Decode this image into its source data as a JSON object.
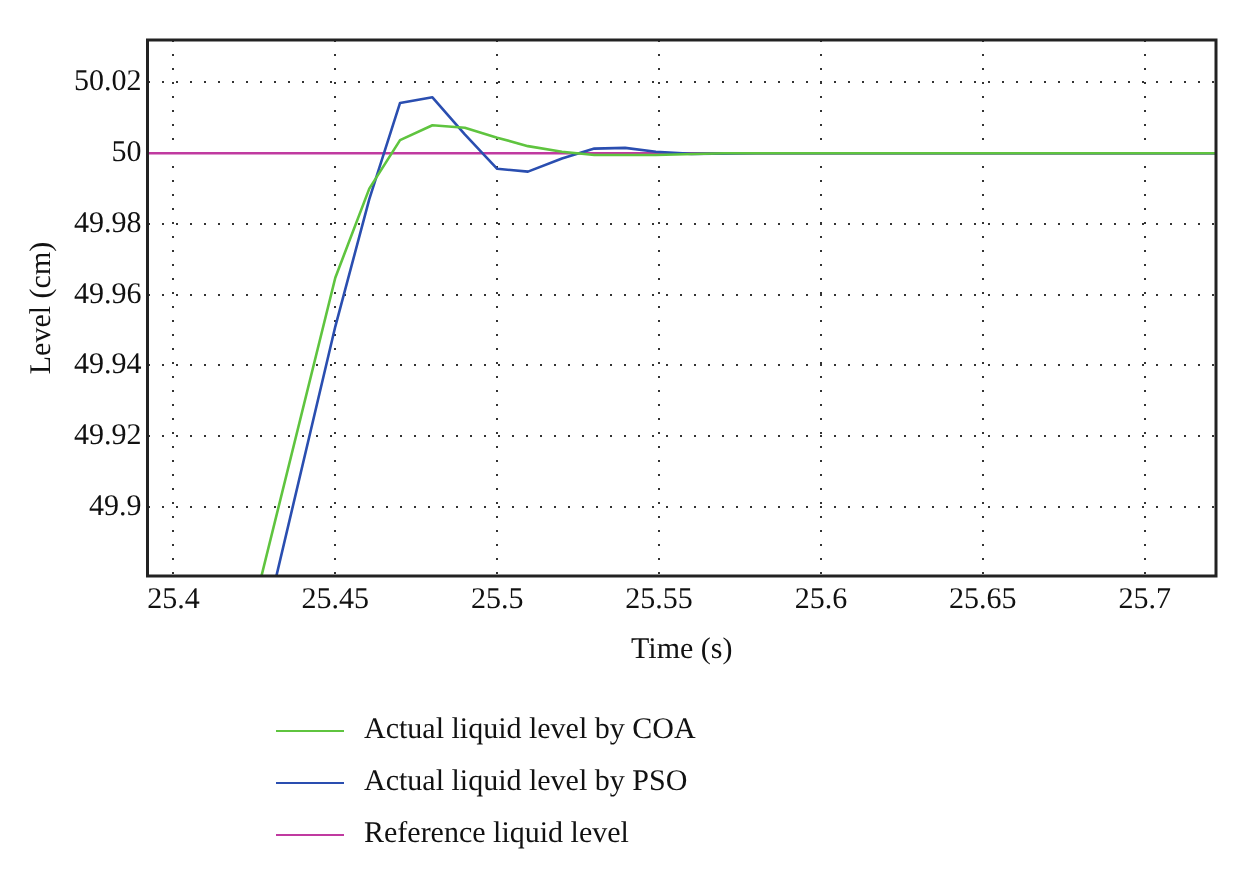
{
  "chart_data": {
    "type": "line",
    "xlabel": "Time (s)",
    "ylabel": "Level (cm)",
    "xlim": [
      25.392,
      25.722
    ],
    "ylim": [
      49.8805,
      50.032
    ],
    "xticks": [
      25.4,
      25.45,
      25.5,
      25.55,
      25.6,
      25.65,
      25.7
    ],
    "yticks": [
      49.9,
      49.92,
      49.94,
      49.96,
      49.98,
      50,
      50.02
    ],
    "grid": true,
    "legend": "bottom",
    "marker": "none",
    "line_style": "solid",
    "series": [
      {
        "name": "Actual liquid level by COA",
        "color": "#5fc43f",
        "x": [
          25.4272,
          25.45,
          25.4605,
          25.47,
          25.48,
          25.49,
          25.5,
          25.5095,
          25.52,
          25.53,
          25.549,
          25.57,
          25.6,
          25.722
        ],
        "values": [
          49.8805,
          49.9648,
          49.99,
          50.0037,
          50.0079,
          50.0072,
          50.0044,
          50.002,
          50.0004,
          49.9995,
          49.9995,
          50,
          50,
          50
        ]
      },
      {
        "name": "Actual liquid level by PSO",
        "color": "#2a4eb0",
        "x": [
          25.4318,
          25.45,
          25.4605,
          25.47,
          25.48,
          25.49,
          25.5,
          25.5095,
          25.52,
          25.53,
          25.5395,
          25.549,
          25.56,
          25.58,
          25.722
        ],
        "values": [
          49.8805,
          49.951,
          49.987,
          50.0142,
          50.0158,
          50.0053,
          49.9956,
          49.9948,
          49.9985,
          50.0013,
          50.0015,
          50.0004,
          49.9998,
          50,
          50
        ]
      },
      {
        "name": "Reference liquid level",
        "color": "#c03aa0",
        "x": [
          25.392,
          25.722
        ],
        "values": [
          50,
          50
        ]
      }
    ]
  }
}
